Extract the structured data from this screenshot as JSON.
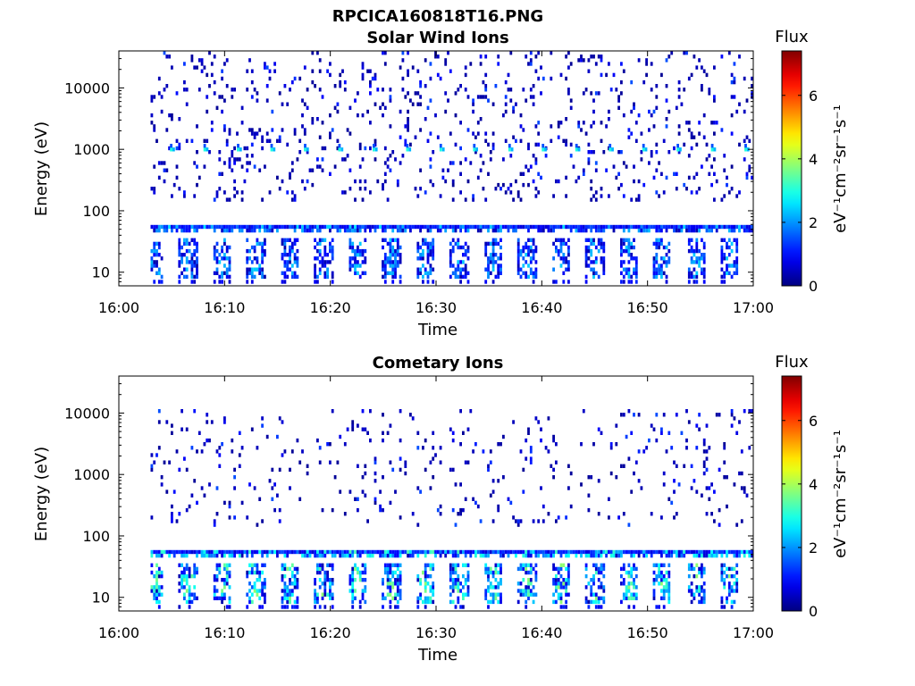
{
  "figure_title": "RPCICA160818T16.PNG",
  "chart_data": [
    {
      "type": "heatmap",
      "title": "Solar Wind Ions",
      "xlabel": "Time",
      "ylabel": "Energy (eV)",
      "x_ticks": [
        "16:00",
        "16:10",
        "16:20",
        "16:30",
        "16:40",
        "16:50",
        "17:00"
      ],
      "x_range": [
        "16:00",
        "17:00"
      ],
      "y_scale": "log",
      "y_ticks": [
        "10",
        "100",
        "1000",
        "10000"
      ],
      "y_range": [
        6,
        40000
      ],
      "data_start": "16:03",
      "colorbar": {
        "title": "Flux",
        "label": "eV⁻¹cm⁻²sr⁻¹s⁻¹",
        "ticks": [
          "0",
          "2",
          "4",
          "6"
        ],
        "range": [
          0,
          7.4
        ],
        "colormap": "jet"
      },
      "features": {
        "noise_band_eV": [
          150,
          40000
        ],
        "dense_line_eV": 55,
        "low_band_eV": [
          8,
          35
        ],
        "periodic_peak_eV": 1000,
        "periodic_peak_times": [
          "16:04:50",
          "16:08:00",
          "16:11:10",
          "16:14:20",
          "16:17:30",
          "16:20:45",
          "16:24:00",
          "16:27:10",
          "16:30:20",
          "16:33:30",
          "16:36:50",
          "16:40:00",
          "16:43:10",
          "16:46:20",
          "16:49:30",
          "16:52:45",
          "16:56:00",
          "16:59:10"
        ],
        "peak_flux": 3.0,
        "line_flux_max": 2.6,
        "low_band_flux_max": 2.4
      }
    },
    {
      "type": "heatmap",
      "title": "Cometary Ions",
      "xlabel": "Time",
      "ylabel": "Energy (eV)",
      "x_ticks": [
        "16:00",
        "16:10",
        "16:20",
        "16:30",
        "16:40",
        "16:50",
        "17:00"
      ],
      "x_range": [
        "16:00",
        "17:00"
      ],
      "y_scale": "log",
      "y_ticks": [
        "10",
        "100",
        "1000",
        "10000"
      ],
      "y_range": [
        6,
        40000
      ],
      "data_start": "16:03",
      "colorbar": {
        "title": "Flux",
        "label": "eV⁻¹cm⁻²sr⁻¹s⁻¹",
        "ticks": [
          "0",
          "2",
          "4",
          "6"
        ],
        "range": [
          0,
          7.4
        ],
        "colormap": "jet"
      },
      "features": {
        "noise_band_eV": [
          150,
          12000
        ],
        "dense_line_eV": 55,
        "low_band_eV": [
          8,
          35
        ],
        "periodic_peak_eV": null,
        "periodic_peak_times": [],
        "peak_flux": 0,
        "line_flux_max": 3.4,
        "low_band_flux_max": 3.8
      }
    }
  ]
}
